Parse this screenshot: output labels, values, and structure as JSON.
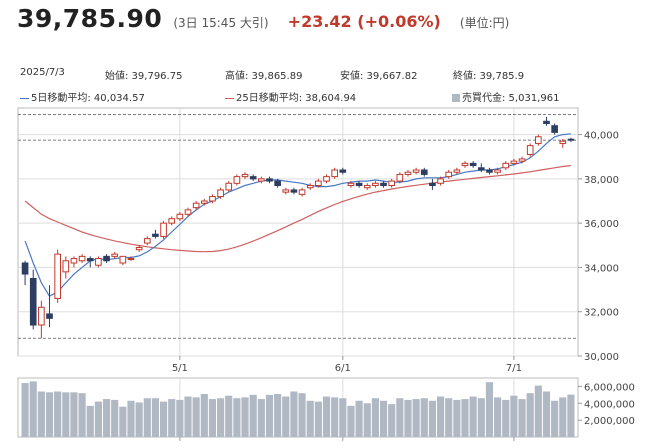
{
  "header": {
    "price": "39,785.90",
    "meta": "(3日 15:45 大引)",
    "change": "+23.42 (+0.06%)",
    "unit": "(単位:円)"
  },
  "stats": {
    "date": "2025/7/3",
    "open": "始値: 39,796.75",
    "high": "高値: 39,865.89",
    "low": "安値: 39,667.82",
    "close": "終値: 39,785.9"
  },
  "legend": {
    "ma5": "5日移動平均: 40,034.57",
    "ma25": "25日移動平均: 38,604.94",
    "volume": "売買代金: 5,031,961"
  },
  "colors": {
    "up": "#c0392b",
    "down": "#2c3e62",
    "ma5": "#4a78c2",
    "ma25": "#d06060",
    "volume": "#b0b8c4",
    "grid": "#dddddd"
  },
  "chart_data": {
    "type": "candlestick",
    "price_axis": {
      "ylim": [
        30000,
        41200
      ],
      "ticks": [
        "30,000",
        "32,000",
        "34,000",
        "36,000",
        "38,000",
        "40,000"
      ]
    },
    "volume_axis": {
      "ylim": [
        0,
        7000000
      ],
      "ticks": [
        "2,000,000",
        "4,000,000",
        "6,000,000"
      ]
    },
    "x_ticks": [
      {
        "index": 19,
        "label": "5/1"
      },
      {
        "index": 39,
        "label": "6/1"
      },
      {
        "index": 60,
        "label": "7/1"
      }
    ],
    "reference_lines": [
      40900,
      39750,
      30800
    ],
    "candles": [
      [
        34200,
        34300,
        33200,
        33700
      ],
      [
        33500,
        33900,
        31200,
        31400
      ],
      [
        31400,
        32500,
        30800,
        32200
      ],
      [
        31900,
        33200,
        31300,
        31700
      ],
      [
        32600,
        34800,
        32400,
        34600
      ],
      [
        33800,
        34500,
        33500,
        34300
      ],
      [
        34200,
        34500,
        34000,
        34400
      ],
      [
        34300,
        34600,
        34200,
        34500
      ],
      [
        34400,
        34500,
        34000,
        34300
      ],
      [
        34100,
        34500,
        34000,
        34400
      ],
      [
        34500,
        34600,
        34200,
        34300
      ],
      [
        34500,
        34700,
        34400,
        34600
      ],
      [
        34200,
        34500,
        34100,
        34500
      ],
      [
        34400,
        34500,
        34300,
        34400
      ],
      [
        34800,
        35000,
        34700,
        34900
      ],
      [
        35100,
        35400,
        35000,
        35300
      ],
      [
        35500,
        35700,
        35300,
        35400
      ],
      [
        35400,
        36100,
        35300,
        36000
      ],
      [
        36000,
        36300,
        35900,
        36200
      ],
      [
        36200,
        36500,
        36100,
        36400
      ],
      [
        36400,
        36700,
        36300,
        36600
      ],
      [
        36700,
        37000,
        36600,
        36900
      ],
      [
        36900,
        37100,
        36800,
        37000
      ],
      [
        37000,
        37300,
        36900,
        37200
      ],
      [
        37200,
        37600,
        37100,
        37500
      ],
      [
        37500,
        37900,
        37400,
        37800
      ],
      [
        37800,
        38200,
        37700,
        38100
      ],
      [
        38100,
        38300,
        38000,
        38200
      ],
      [
        38100,
        38200,
        37900,
        38000
      ],
      [
        37900,
        38100,
        37800,
        38000
      ],
      [
        38000,
        38100,
        37800,
        37900
      ],
      [
        37900,
        38000,
        37600,
        37700
      ],
      [
        37400,
        37600,
        37300,
        37500
      ],
      [
        37500,
        37600,
        37300,
        37400
      ],
      [
        37300,
        37600,
        37200,
        37500
      ],
      [
        37600,
        37800,
        37500,
        37700
      ],
      [
        37700,
        38000,
        37600,
        37900
      ],
      [
        37900,
        38200,
        37800,
        38100
      ],
      [
        38100,
        38500,
        38000,
        38400
      ],
      [
        38400,
        38500,
        38200,
        38300
      ],
      [
        37700,
        37900,
        37600,
        37800
      ],
      [
        37800,
        37900,
        37600,
        37700
      ],
      [
        37600,
        37800,
        37500,
        37700
      ],
      [
        37700,
        37900,
        37600,
        37800
      ],
      [
        37800,
        37900,
        37600,
        37700
      ],
      [
        37700,
        38000,
        37600,
        37900
      ],
      [
        37900,
        38300,
        37800,
        38200
      ],
      [
        38200,
        38400,
        38100,
        38300
      ],
      [
        38300,
        38500,
        38200,
        38400
      ],
      [
        38400,
        38500,
        38100,
        38200
      ],
      [
        37800,
        38000,
        37500,
        37700
      ],
      [
        37800,
        38100,
        37700,
        38000
      ],
      [
        38100,
        38400,
        38000,
        38300
      ],
      [
        38300,
        38500,
        38200,
        38400
      ],
      [
        38600,
        38800,
        38500,
        38700
      ],
      [
        38700,
        38800,
        38500,
        38600
      ],
      [
        38500,
        38700,
        38300,
        38400
      ],
      [
        38400,
        38500,
        38200,
        38300
      ],
      [
        38300,
        38500,
        38200,
        38400
      ],
      [
        38500,
        38800,
        38400,
        38700
      ],
      [
        38700,
        38900,
        38600,
        38800
      ],
      [
        38800,
        39000,
        38700,
        38900
      ],
      [
        39100,
        39600,
        39000,
        39500
      ],
      [
        39600,
        40000,
        39500,
        39900
      ],
      [
        40600,
        40800,
        40400,
        40500
      ],
      [
        40400,
        40500,
        40000,
        40100
      ],
      [
        39600,
        39800,
        39400,
        39700
      ],
      [
        39790,
        39860,
        39660,
        39780
      ]
    ],
    "ma5": [
      35200,
      34200,
      33300,
      32700,
      32900,
      33300,
      33700,
      34000,
      34300,
      34400,
      34350,
      34400,
      34450,
      34450,
      34520,
      34700,
      34950,
      35250,
      35600,
      35950,
      36300,
      36600,
      36850,
      37000,
      37200,
      37400,
      37550,
      37700,
      37800,
      37900,
      37950,
      37950,
      37900,
      37850,
      37800,
      37700,
      37650,
      37650,
      37700,
      37800,
      37850,
      37900,
      37900,
      37950,
      37900,
      37850,
      37850,
      37900,
      38000,
      38050,
      38050,
      38050,
      38100,
      38200,
      38300,
      38350,
      38400,
      38400,
      38450,
      38550,
      38650,
      38750,
      38950,
      39250,
      39600,
      39900,
      40000,
      40034.57
    ],
    "ma25": [
      37000,
      36700,
      36400,
      36200,
      36050,
      35900,
      35750,
      35600,
      35480,
      35380,
      35290,
      35200,
      35120,
      35050,
      34990,
      34930,
      34880,
      34840,
      34800,
      34770,
      34740,
      34720,
      34710,
      34720,
      34760,
      34830,
      34930,
      35050,
      35190,
      35340,
      35500,
      35660,
      35830,
      36000,
      36170,
      36350,
      36530,
      36690,
      36840,
      36980,
      37100,
      37210,
      37310,
      37400,
      37470,
      37540,
      37600,
      37660,
      37710,
      37760,
      37810,
      37860,
      37900,
      37940,
      37980,
      38020,
      38060,
      38100,
      38140,
      38180,
      38220,
      38270,
      38320,
      38380,
      38440,
      38500,
      38560,
      38604.94
    ],
    "volume": [
      6400000,
      6600000,
      5400000,
      5300000,
      5400000,
      5300000,
      5300000,
      5200000,
      3700000,
      4200000,
      4500000,
      4400000,
      3600000,
      4300000,
      4100000,
      4600000,
      4600000,
      4200000,
      4500000,
      4400000,
      4800000,
      4700000,
      5100000,
      4500000,
      4600000,
      4900000,
      4600000,
      4700000,
      5000000,
      4500000,
      5000000,
      5100000,
      4800000,
      5400000,
      5200000,
      4300000,
      4200000,
      4800000,
      4700000,
      4600000,
      3700000,
      4300000,
      4000000,
      4600000,
      4300000,
      3900000,
      4600000,
      4400000,
      4500000,
      4600000,
      4300000,
      4800000,
      4600000,
      4400000,
      4500000,
      4800000,
      4600000,
      6500000,
      4700000,
      4400000,
      4900000,
      4500000,
      5200000,
      6100000,
      5400000,
      4300000,
      4700000,
      5031961
    ]
  }
}
